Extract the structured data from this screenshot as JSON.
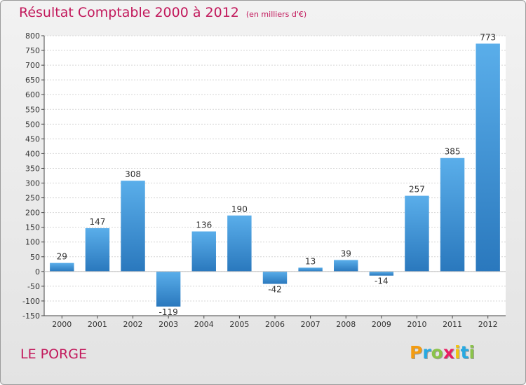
{
  "chart_data": {
    "type": "bar",
    "title": "Résultat Comptable 2000 à 2012",
    "subtitle": "(en milliers d'€)",
    "categories": [
      "2000",
      "2001",
      "2002",
      "2003",
      "2004",
      "2005",
      "2006",
      "2007",
      "2008",
      "2009",
      "2010",
      "2011",
      "2012"
    ],
    "values": [
      29,
      147,
      308,
      -119,
      136,
      190,
      -42,
      13,
      39,
      -14,
      257,
      385,
      773
    ],
    "ylim": [
      -150,
      800
    ],
    "yticks": [
      -150,
      -100,
      -50,
      0,
      50,
      100,
      150,
      200,
      250,
      300,
      350,
      400,
      450,
      500,
      550,
      600,
      650,
      700,
      750,
      800
    ],
    "xlabel": "",
    "ylabel": "",
    "grid": true,
    "bar_color": "#3d8fd6"
  },
  "commune": "LE PORGE",
  "logo": {
    "letters": [
      "P",
      "r",
      "o",
      "x",
      "i",
      "t",
      "i"
    ],
    "colors": [
      "#f39c12",
      "#27a9e1",
      "#8bc34a",
      "#e91e63",
      "#f1c40f",
      "#27a9e1",
      "#8bc34a"
    ]
  }
}
